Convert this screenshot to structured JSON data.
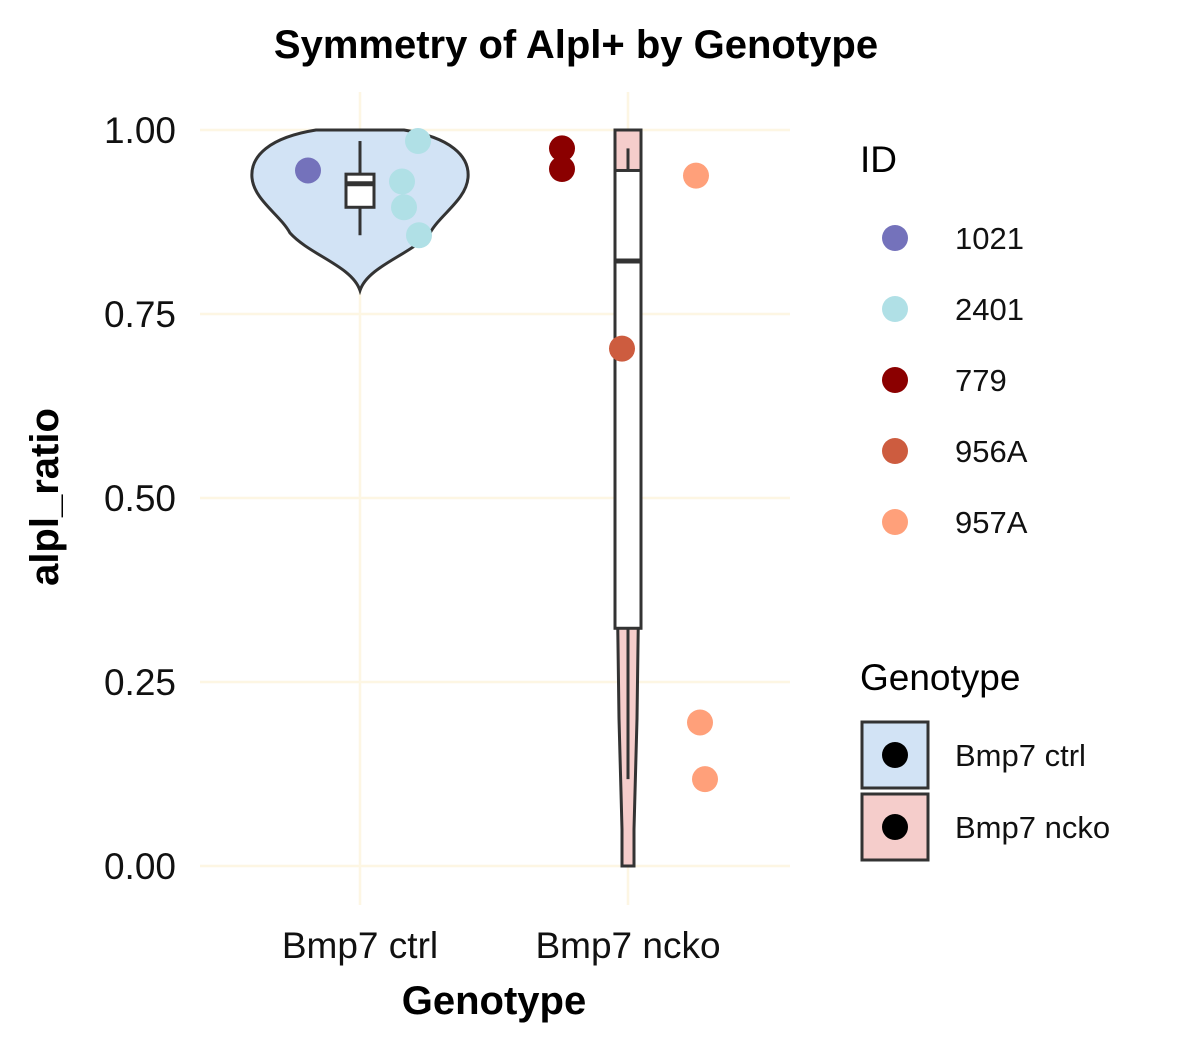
{
  "chart_data": {
    "type": "violin",
    "title": "Symmetry of Alpl+ by Genotype",
    "xlabel": "Genotype",
    "ylabel": "alpl_ratio",
    "categories": [
      "Bmp7 ctrl",
      "Bmp7 ncko"
    ],
    "ylim": [
      -0.05,
      1.05
    ],
    "yticks": [
      0.0,
      0.25,
      0.5,
      0.75,
      1.0
    ],
    "ytick_labels": [
      "0.00",
      "0.25",
      "0.50",
      "0.75",
      "1.00"
    ],
    "grid": true,
    "genotype_colors": {
      "Bmp7 ctrl": "#d2e3f5",
      "Bmp7 ncko": "#f5cdcb"
    },
    "boxes": [
      {
        "category": "Bmp7 ctrl",
        "q1": 0.895,
        "median": 0.927,
        "q3": 0.94,
        "whisker_low": 0.857,
        "whisker_high": 0.985
      },
      {
        "category": "Bmp7 ncko",
        "q1": 0.323,
        "median": 0.822,
        "q3": 0.945,
        "whisker_low": 0.118,
        "whisker_high": 0.975
      }
    ],
    "points": [
      {
        "category": "Bmp7 ctrl",
        "id": "1021",
        "y": 0.945
      },
      {
        "category": "Bmp7 ctrl",
        "id": "2401",
        "y": 0.985
      },
      {
        "category": "Bmp7 ctrl",
        "id": "2401",
        "y": 0.93
      },
      {
        "category": "Bmp7 ctrl",
        "id": "2401",
        "y": 0.895
      },
      {
        "category": "Bmp7 ctrl",
        "id": "2401",
        "y": 0.857
      },
      {
        "category": "Bmp7 ncko",
        "id": "779",
        "y": 0.975
      },
      {
        "category": "Bmp7 ncko",
        "id": "779",
        "y": 0.947
      },
      {
        "category": "Bmp7 ncko",
        "id": "956A",
        "y": 0.703
      },
      {
        "category": "Bmp7 ncko",
        "id": "957A",
        "y": 0.938
      },
      {
        "category": "Bmp7 ncko",
        "id": "957A",
        "y": 0.195
      },
      {
        "category": "Bmp7 ncko",
        "id": "957A",
        "y": 0.118
      }
    ],
    "legend": {
      "placement": "right",
      "id_title": "ID",
      "ids": [
        {
          "label": "1021",
          "color": "#7472bb"
        },
        {
          "label": "2401",
          "color": "#b0e0e6"
        },
        {
          "label": "779",
          "color": "#8b0000"
        },
        {
          "label": "956A",
          "color": "#cd5c3f"
        },
        {
          "label": "957A",
          "color": "#ffa07a"
        }
      ],
      "genotype_title": "Genotype",
      "genotypes": [
        {
          "label": "Bmp7 ctrl",
          "color": "#d2e3f5"
        },
        {
          "label": "Bmp7 ncko",
          "color": "#f5cdcb"
        }
      ]
    }
  }
}
